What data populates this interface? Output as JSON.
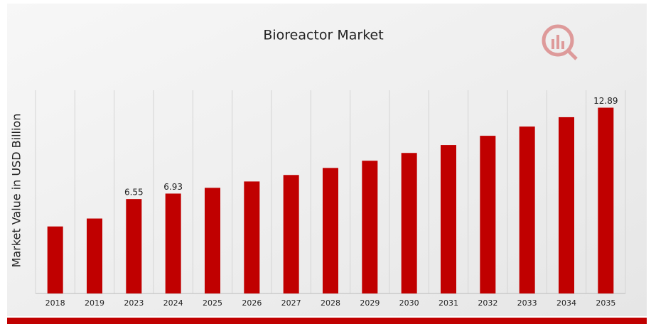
{
  "chart_data": {
    "type": "bar",
    "title": "Bioreactor Market",
    "y_label": "Market Value in USD Billion",
    "categories": [
      "2018",
      "2019",
      "2023",
      "2024",
      "2025",
      "2026",
      "2027",
      "2028",
      "2029",
      "2030",
      "2031",
      "2032",
      "2033",
      "2034",
      "2035"
    ],
    "values": [
      4.65,
      5.2,
      6.55,
      6.93,
      7.33,
      7.77,
      8.22,
      8.71,
      9.21,
      9.75,
      10.3,
      10.94,
      11.58,
      12.23,
      12.89
    ],
    "value_labels": [
      null,
      null,
      "6.55",
      "6.93",
      null,
      null,
      null,
      null,
      null,
      null,
      null,
      null,
      null,
      null,
      "12.89"
    ],
    "color": "#c00000",
    "ylim": [
      0,
      14.1
    ],
    "grid": true
  }
}
